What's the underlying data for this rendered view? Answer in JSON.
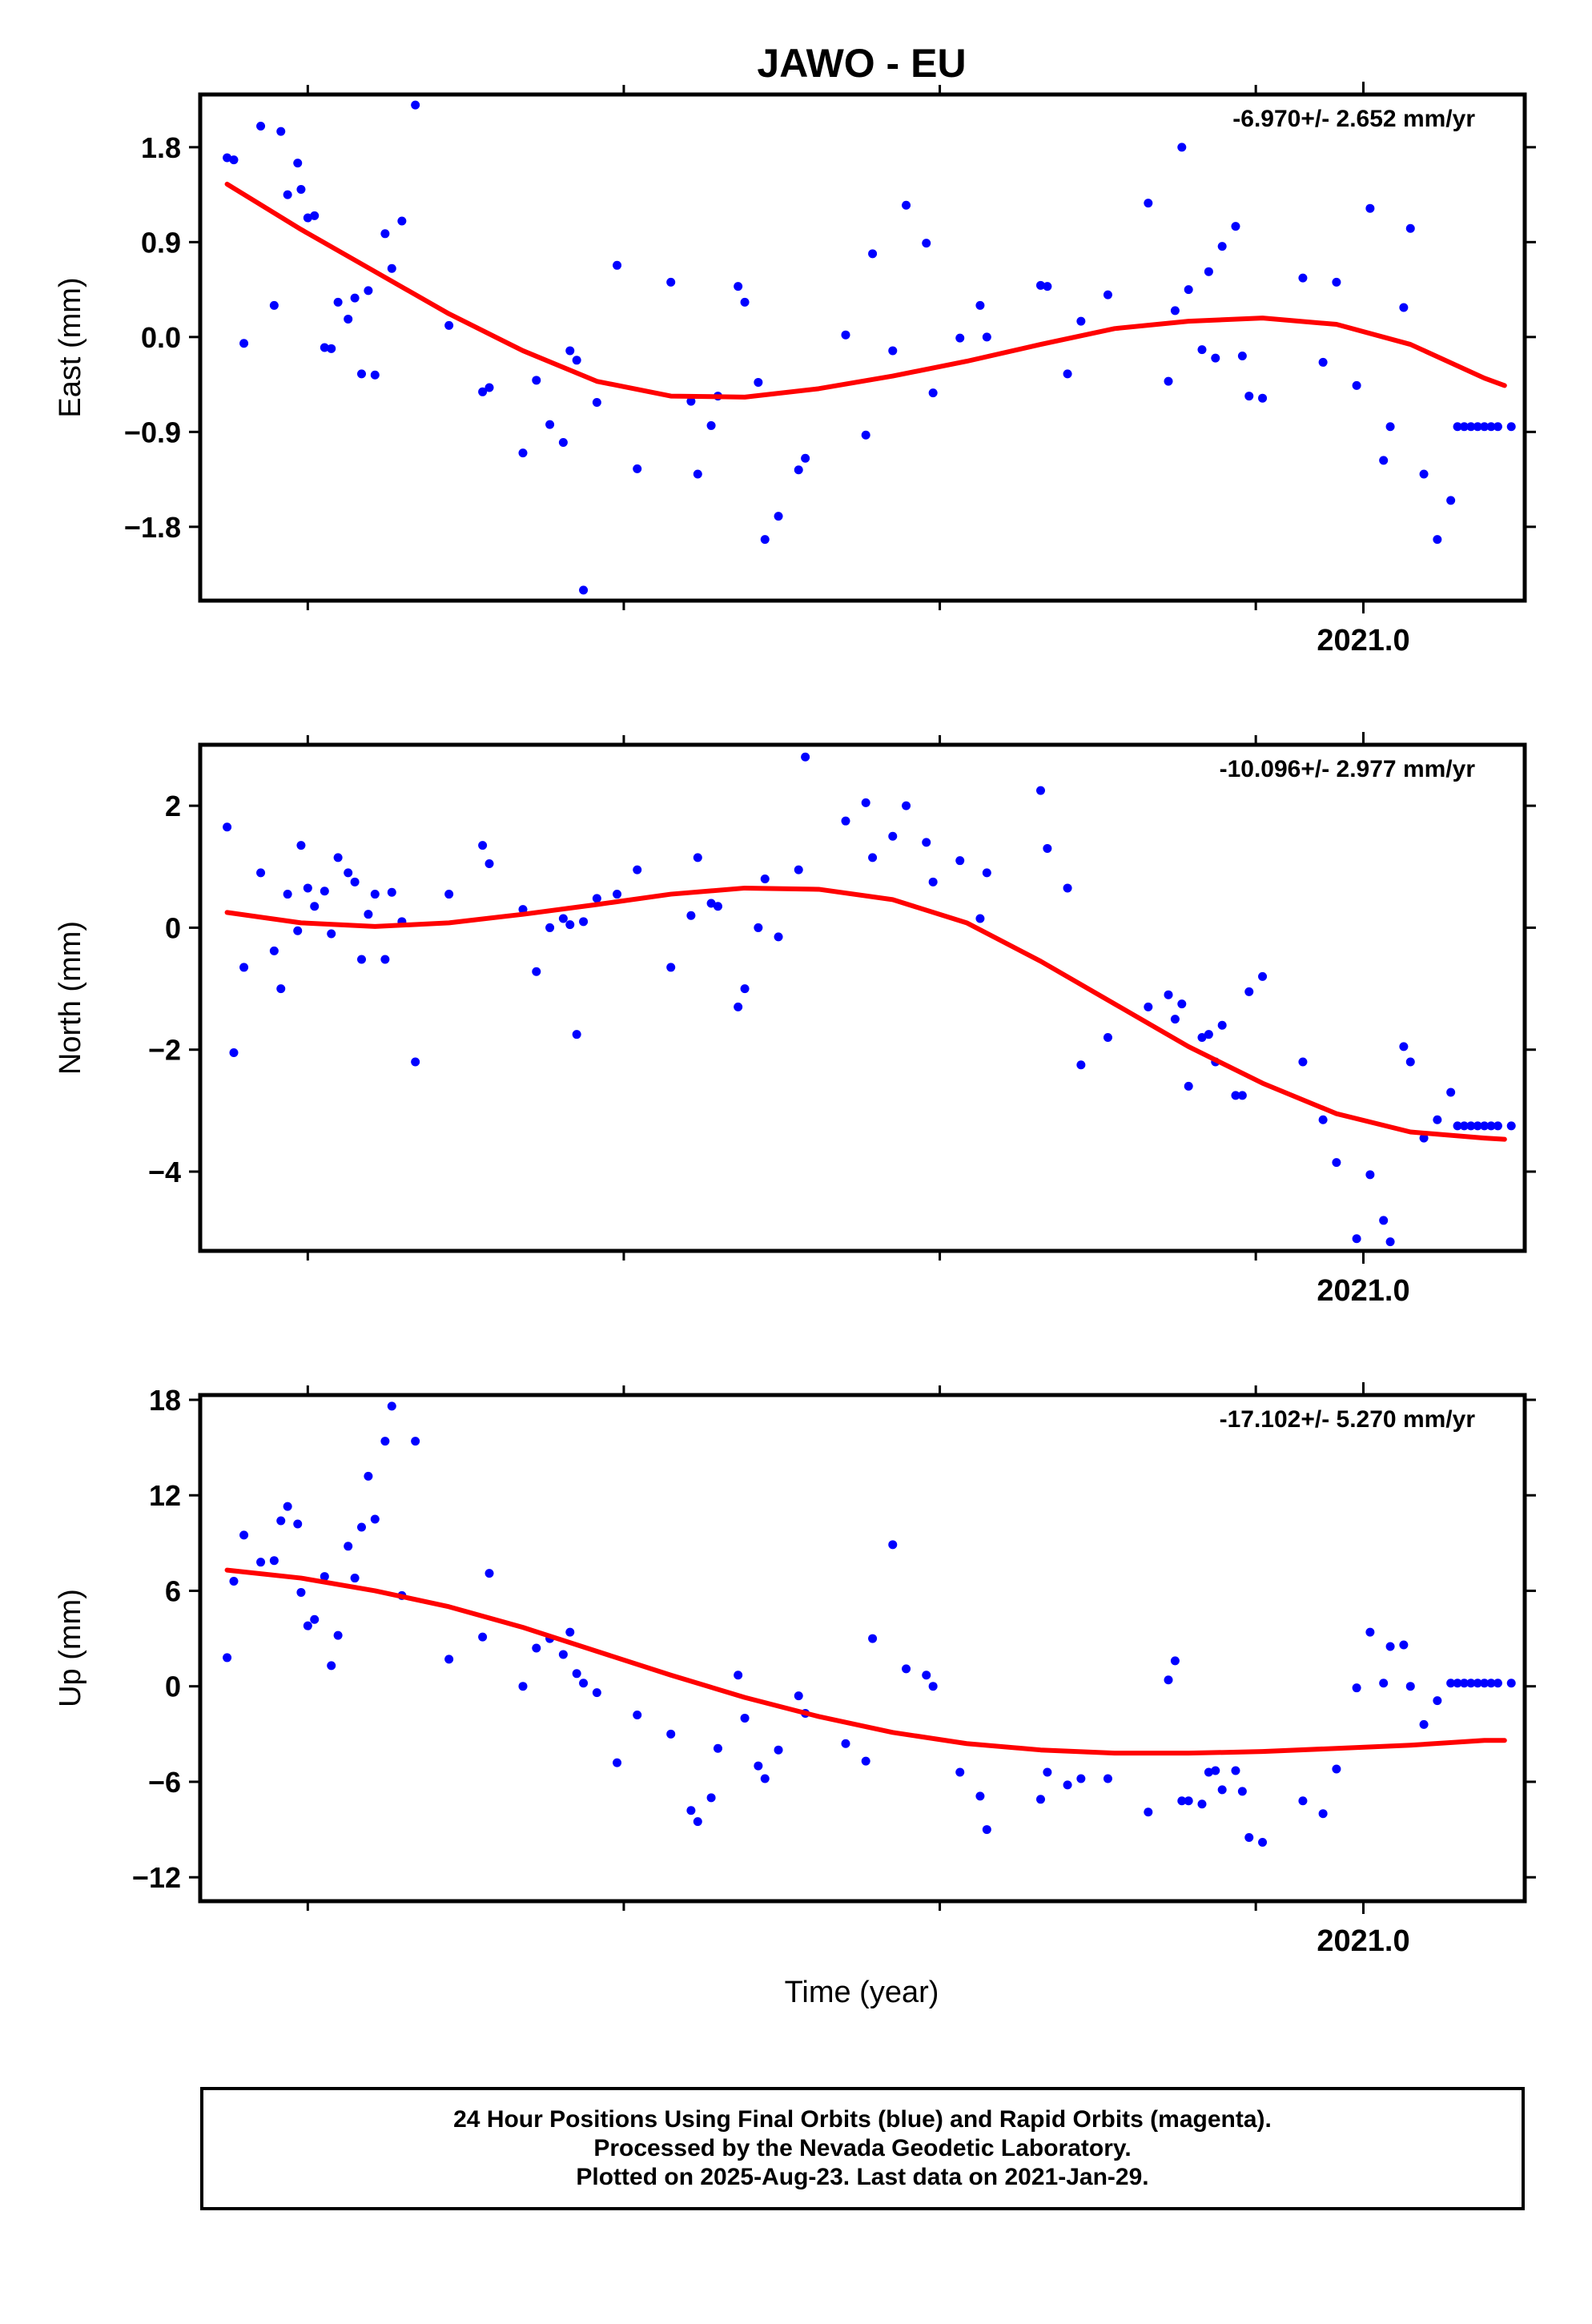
{
  "title": "JAWO - EU",
  "xlabel": "Time (year)",
  "colors": {
    "final": "#0000ff",
    "fit": "#ff0000",
    "axis": "#000000"
  },
  "footer": {
    "line1": "24 Hour Positions Using Final Orbits (blue) and Rapid Orbits (magenta).",
    "line2": "Processed by the Nevada Geodetic Laboratory.",
    "line3": "Plotted on 2025-Aug-23. Last data on 2021-Jan-29."
  },
  "chart_data": [
    {
      "type": "scatter",
      "panel": "east",
      "ylabel": "East (mm)",
      "rate_text": "-6.970+/- 2.652 mm/yr",
      "xlim": [
        2019.27,
        2021.24
      ],
      "ylim": [
        -2.5,
        2.3
      ],
      "yticks": [
        1.8,
        0.9,
        0.0,
        -0.9,
        -1.8
      ],
      "ytick_labels": [
        "1.8",
        "0.9",
        "0.0",
        "−0.9",
        "−1.8"
      ],
      "xticks_major": [
        {
          "value": 2021.0,
          "label": "2021.0"
        }
      ],
      "xticks_minor": [
        2019.43,
        2019.9,
        2020.37,
        2020.84
      ],
      "x": [
        2019.31,
        2019.32,
        2019.335,
        2019.36,
        2019.38,
        2019.39,
        2019.4,
        2019.415,
        2019.42,
        2019.43,
        2019.44,
        2019.455,
        2019.465,
        2019.475,
        2019.49,
        2019.5,
        2019.51,
        2019.52,
        2019.53,
        2019.545,
        2019.555,
        2019.57,
        2019.59,
        2019.64,
        2019.69,
        2019.7,
        2019.75,
        2019.77,
        2019.79,
        2019.81,
        2019.82,
        2019.83,
        2019.84,
        2019.86,
        2019.89,
        2019.92,
        2019.97,
        2020.0,
        2020.01,
        2020.03,
        2020.04,
        2020.07,
        2020.08,
        2020.1,
        2020.11,
        2020.13,
        2020.16,
        2020.17,
        2020.23,
        2020.26,
        2020.27,
        2020.3,
        2020.32,
        2020.35,
        2020.36,
        2020.4,
        2020.43,
        2020.44,
        2020.52,
        2020.53,
        2020.56,
        2020.58,
        2020.62,
        2020.68,
        2020.71,
        2020.72,
        2020.73,
        2020.74,
        2020.76,
        2020.77,
        2020.78,
        2020.79,
        2020.81,
        2020.82,
        2020.83,
        2020.85,
        2020.91,
        2020.94,
        2020.96,
        2020.99,
        2021.01,
        2021.03,
        2021.04,
        2021.06,
        2021.07,
        2021.09,
        2021.11,
        2021.13,
        2021.14,
        2021.15,
        2021.16,
        2021.17,
        2021.18,
        2021.19,
        2021.2,
        2021.22
      ],
      "y": [
        1.7,
        1.68,
        -0.06,
        2.0,
        0.3,
        1.95,
        1.35,
        1.65,
        1.4,
        1.13,
        1.15,
        -0.1,
        -0.11,
        0.33,
        0.17,
        0.37,
        -0.35,
        0.44,
        -0.36,
        0.98,
        0.65,
        1.1,
        2.2,
        0.11,
        -0.52,
        -0.48,
        -1.1,
        -0.41,
        -0.83,
        -1.0,
        -0.13,
        -0.22,
        -2.4,
        -0.62,
        0.68,
        -1.25,
        0.52,
        -0.61,
        -1.3,
        -0.84,
        -0.56,
        0.48,
        0.33,
        -0.43,
        -1.92,
        -1.7,
        -1.26,
        -1.15,
        0.02,
        -0.93,
        0.79,
        -0.13,
        1.25,
        0.89,
        -0.53,
        -0.01,
        0.3,
        0.0,
        0.49,
        0.48,
        -0.35,
        0.15,
        0.4,
        1.27,
        -0.42,
        0.25,
        1.8,
        0.45,
        -0.12,
        0.62,
        -0.2,
        0.86,
        1.05,
        -0.18,
        -0.56,
        -0.58,
        0.56,
        -0.24,
        0.52,
        -0.46,
        1.22,
        -1.17,
        -0.85,
        0.28,
        1.03,
        -1.3,
        -1.92,
        -1.55,
        -0.85,
        -0.85,
        -0.85,
        -0.85,
        -0.85,
        -0.85,
        -0.85,
        -0.85
      ],
      "fit": {
        "x": [
          2019.31,
          2019.42,
          2019.53,
          2019.64,
          2019.75,
          2019.86,
          2019.97,
          2020.08,
          2020.19,
          2020.3,
          2020.41,
          2020.52,
          2020.63,
          2020.74,
          2020.85,
          2020.96,
          2021.07,
          2021.18,
          2021.21
        ],
        "y": [
          1.45,
          1.02,
          0.62,
          0.22,
          -0.13,
          -0.42,
          -0.56,
          -0.57,
          -0.49,
          -0.37,
          -0.23,
          -0.07,
          0.08,
          0.15,
          0.18,
          0.12,
          -0.07,
          -0.39,
          -0.46
        ]
      }
    },
    {
      "type": "scatter",
      "panel": "north",
      "ylabel": "North (mm)",
      "rate_text": "-10.096+/- 2.977 mm/yr",
      "xlim": [
        2019.27,
        2021.24
      ],
      "ylim": [
        -5.3,
        3.0
      ],
      "yticks": [
        2,
        0,
        -2,
        -4
      ],
      "ytick_labels": [
        "2",
        "0",
        "−2",
        "−4"
      ],
      "xticks_major": [
        {
          "value": 2021.0,
          "label": "2021.0"
        }
      ],
      "xticks_minor": [
        2019.43,
        2019.9,
        2020.37,
        2020.84
      ],
      "x": [
        2019.31,
        2019.32,
        2019.335,
        2019.36,
        2019.38,
        2019.39,
        2019.4,
        2019.415,
        2019.42,
        2019.43,
        2019.44,
        2019.455,
        2019.465,
        2019.475,
        2019.49,
        2019.5,
        2019.51,
        2019.52,
        2019.53,
        2019.545,
        2019.555,
        2019.57,
        2019.59,
        2019.64,
        2019.69,
        2019.7,
        2019.75,
        2019.77,
        2019.79,
        2019.81,
        2019.82,
        2019.83,
        2019.84,
        2019.86,
        2019.89,
        2019.92,
        2019.97,
        2020.0,
        2020.01,
        2020.03,
        2020.04,
        2020.07,
        2020.08,
        2020.1,
        2020.11,
        2020.13,
        2020.16,
        2020.17,
        2020.23,
        2020.26,
        2020.27,
        2020.3,
        2020.32,
        2020.35,
        2020.36,
        2020.4,
        2020.43,
        2020.44,
        2020.52,
        2020.53,
        2020.56,
        2020.58,
        2020.62,
        2020.68,
        2020.71,
        2020.72,
        2020.73,
        2020.74,
        2020.76,
        2020.77,
        2020.78,
        2020.79,
        2020.81,
        2020.82,
        2020.83,
        2020.85,
        2020.91,
        2020.94,
        2020.96,
        2020.99,
        2021.01,
        2021.03,
        2021.04,
        2021.06,
        2021.07,
        2021.09,
        2021.11,
        2021.13,
        2021.14,
        2021.15,
        2021.16,
        2021.17,
        2021.18,
        2021.19,
        2021.2,
        2021.22
      ],
      "y": [
        1.65,
        -2.05,
        -0.65,
        0.9,
        -0.38,
        -1.0,
        0.55,
        -0.05,
        1.35,
        0.65,
        0.35,
        0.6,
        -0.1,
        1.15,
        0.9,
        0.75,
        -0.52,
        0.22,
        0.55,
        -0.52,
        0.58,
        0.1,
        -2.2,
        0.55,
        1.35,
        1.05,
        0.3,
        -0.72,
        0.0,
        0.15,
        0.05,
        -1.75,
        0.1,
        0.48,
        0.55,
        0.95,
        -0.65,
        0.2,
        1.15,
        0.4,
        0.35,
        -1.3,
        -1.0,
        0.0,
        0.8,
        -0.15,
        0.95,
        2.8,
        1.75,
        2.05,
        1.15,
        1.5,
        2.0,
        1.4,
        0.75,
        1.1,
        0.15,
        0.9,
        2.25,
        1.3,
        0.65,
        -2.25,
        -1.8,
        -1.3,
        -1.1,
        -1.5,
        -1.25,
        -2.6,
        -1.8,
        -1.75,
        -2.2,
        -1.6,
        -2.75,
        -2.75,
        -1.05,
        -0.8,
        -2.2,
        -3.15,
        -3.85,
        -5.1,
        -4.05,
        -4.8,
        -5.15,
        -1.95,
        -2.2,
        -3.45,
        -3.15,
        -2.7,
        -3.25,
        -3.25,
        -3.25,
        -3.25,
        -3.25,
        -3.25,
        -3.25,
        -3.25
      ],
      "fit": {
        "x": [
          2019.31,
          2019.42,
          2019.53,
          2019.64,
          2019.75,
          2019.86,
          2019.97,
          2020.08,
          2020.19,
          2020.3,
          2020.41,
          2020.52,
          2020.63,
          2020.74,
          2020.85,
          2020.96,
          2021.07,
          2021.18,
          2021.21
        ],
        "y": [
          0.25,
          0.08,
          0.02,
          0.08,
          0.22,
          0.38,
          0.55,
          0.65,
          0.63,
          0.46,
          0.08,
          -0.55,
          -1.25,
          -1.95,
          -2.55,
          -3.05,
          -3.35,
          -3.45,
          -3.47
        ]
      }
    },
    {
      "type": "scatter",
      "panel": "up",
      "ylabel": "Up (mm)",
      "rate_text": "-17.102+/- 5.270 mm/yr",
      "xlim": [
        2019.27,
        2021.24
      ],
      "ylim": [
        -13.5,
        18.3
      ],
      "yticks": [
        18,
        12,
        6,
        0,
        -6,
        -12
      ],
      "ytick_labels": [
        "18",
        "12",
        "6",
        "0",
        "−6",
        "−12"
      ],
      "xticks_major": [
        {
          "value": 2021.0,
          "label": "2021.0"
        }
      ],
      "xticks_minor": [
        2019.43,
        2019.9,
        2020.37,
        2020.84
      ],
      "x": [
        2019.31,
        2019.32,
        2019.335,
        2019.36,
        2019.38,
        2019.39,
        2019.4,
        2019.415,
        2019.42,
        2019.43,
        2019.44,
        2019.455,
        2019.465,
        2019.475,
        2019.49,
        2019.5,
        2019.51,
        2019.52,
        2019.53,
        2019.545,
        2019.555,
        2019.57,
        2019.59,
        2019.64,
        2019.69,
        2019.7,
        2019.75,
        2019.77,
        2019.79,
        2019.81,
        2019.82,
        2019.83,
        2019.84,
        2019.86,
        2019.89,
        2019.92,
        2019.97,
        2020.0,
        2020.01,
        2020.03,
        2020.04,
        2020.07,
        2020.08,
        2020.1,
        2020.11,
        2020.13,
        2020.16,
        2020.17,
        2020.23,
        2020.26,
        2020.27,
        2020.3,
        2020.32,
        2020.35,
        2020.36,
        2020.4,
        2020.43,
        2020.44,
        2020.52,
        2020.53,
        2020.56,
        2020.58,
        2020.62,
        2020.68,
        2020.71,
        2020.72,
        2020.73,
        2020.74,
        2020.76,
        2020.77,
        2020.78,
        2020.79,
        2020.81,
        2020.82,
        2020.83,
        2020.85,
        2020.91,
        2020.94,
        2020.96,
        2020.99,
        2021.01,
        2021.03,
        2021.04,
        2021.06,
        2021.07,
        2021.09,
        2021.11,
        2021.13,
        2021.14,
        2021.15,
        2021.16,
        2021.17,
        2021.18,
        2021.19,
        2021.2,
        2021.22
      ],
      "y": [
        1.8,
        6.6,
        9.5,
        7.8,
        7.9,
        10.4,
        11.3,
        10.2,
        5.9,
        3.8,
        4.2,
        6.9,
        1.3,
        3.2,
        8.8,
        6.8,
        10.0,
        13.2,
        10.5,
        15.4,
        17.6,
        5.7,
        15.4,
        1.7,
        3.1,
        7.1,
        0.0,
        2.4,
        3.0,
        2.0,
        3.4,
        0.8,
        0.2,
        -0.4,
        -4.8,
        -1.8,
        -3.0,
        -7.8,
        -8.5,
        -7.0,
        -3.9,
        0.7,
        -2.0,
        -5.0,
        -5.8,
        -4.0,
        -0.6,
        -1.7,
        -3.6,
        -4.7,
        3.0,
        8.9,
        1.1,
        0.7,
        0.0,
        -5.4,
        -6.9,
        -9.0,
        -7.1,
        -5.4,
        -6.2,
        -5.8,
        -5.8,
        -7.9,
        0.4,
        1.6,
        -7.2,
        -7.2,
        -7.4,
        -5.4,
        -5.3,
        -6.5,
        -5.3,
        -6.6,
        -9.5,
        -9.8,
        -7.2,
        -8.0,
        -5.2,
        -0.1,
        3.4,
        0.2,
        2.5,
        2.6,
        0.0,
        -2.4,
        -0.9,
        0.2,
        0.2,
        0.2,
        0.2,
        0.2,
        0.2,
        0.2,
        0.2,
        0.2
      ],
      "fit": {
        "x": [
          2019.31,
          2019.42,
          2019.53,
          2019.64,
          2019.75,
          2019.86,
          2019.97,
          2020.08,
          2020.19,
          2020.3,
          2020.41,
          2020.52,
          2020.63,
          2020.74,
          2020.85,
          2020.96,
          2021.07,
          2021.18,
          2021.21
        ],
        "y": [
          7.3,
          6.8,
          6.0,
          5.0,
          3.7,
          2.2,
          0.7,
          -0.7,
          -1.9,
          -2.9,
          -3.6,
          -4.0,
          -4.2,
          -4.2,
          -4.1,
          -3.9,
          -3.7,
          -3.4,
          -3.4
        ]
      }
    }
  ]
}
